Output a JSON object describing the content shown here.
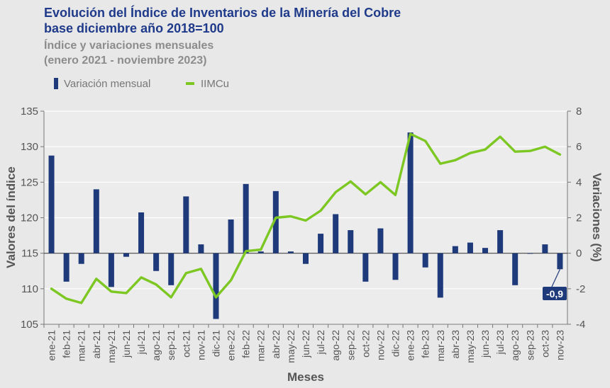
{
  "chart_data": {
    "type": "bar+line",
    "title": "Evolución del Índice de Inventarios de la Minería del Cobre",
    "title_line2": "base diciembre año 2018=100",
    "subtitle": "Índice y variaciones mensuales",
    "subtitle_line2": "(enero 2021 - noviembre 2023)",
    "xlabel": "Meses",
    "ylabel_left": "Valores del índice",
    "ylabel_right": "Variaciones (%)",
    "ylim_left": [
      105,
      135
    ],
    "yticks_left": [
      "105",
      "110",
      "115",
      "120",
      "125",
      "130",
      "135"
    ],
    "ylim_right": [
      -4,
      8
    ],
    "yticks_right": [
      "-4",
      "-2",
      "0",
      "2",
      "4",
      "6",
      "8"
    ],
    "grid": true,
    "legend_position": "top-left",
    "categories": [
      "ene-21",
      "feb-21",
      "mar-21",
      "abr-21",
      "may-21",
      "jun-21",
      "jul-21",
      "ago-21",
      "sep-21",
      "oct-21",
      "nov-21",
      "dic-21",
      "ene-22",
      "feb-22",
      "mar-22",
      "abr-22",
      "may-22",
      "jun-22",
      "jul-22",
      "ago-22",
      "sep-22",
      "oct-22",
      "nov-22",
      "dic-22",
      "ene-23",
      "feb-23",
      "mar-23",
      "abr-23",
      "may-23",
      "jun-23",
      "jul-23",
      "ago-23",
      "sep-23",
      "oct-23",
      "nov-23"
    ],
    "series": [
      {
        "name": "Variación mensual",
        "type": "bar",
        "axis": "right",
        "color": "#1f3a7a",
        "values": [
          5.5,
          -1.6,
          -0.6,
          3.6,
          -1.9,
          -0.2,
          2.3,
          -1.0,
          -1.8,
          3.2,
          0.5,
          -3.7,
          1.9,
          3.9,
          0.1,
          3.5,
          0.1,
          -0.6,
          1.1,
          2.2,
          1.3,
          -1.6,
          1.4,
          -1.5,
          6.8,
          -0.8,
          -2.5,
          0.4,
          0.6,
          0.3,
          1.3,
          -1.8,
          0.0,
          0.5,
          -0.9
        ]
      },
      {
        "name": "IIMCu",
        "type": "line",
        "axis": "left",
        "color": "#7dc723",
        "values": [
          110.0,
          108.6,
          108.0,
          111.4,
          109.6,
          109.4,
          111.6,
          110.6,
          108.8,
          112.2,
          112.8,
          108.8,
          111.2,
          115.3,
          115.5,
          120.0,
          120.2,
          119.6,
          121.0,
          123.6,
          125.1,
          123.3,
          125.0,
          123.2,
          131.8,
          130.8,
          127.6,
          128.1,
          129.1,
          129.6,
          131.4,
          129.3,
          129.4,
          130.0,
          128.9
        ]
      }
    ],
    "annotations": [
      {
        "label": "-0,9",
        "category": "nov-23"
      }
    ]
  }
}
